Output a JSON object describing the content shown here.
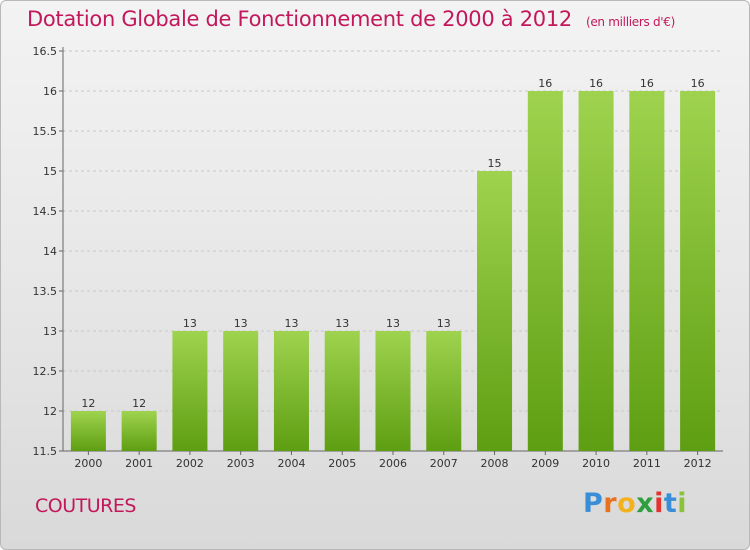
{
  "title": "Dotation Globale de Fonctionnement de 2000 à 2012",
  "unit_note": "(en milliers d'€)",
  "commune": "COUTURES",
  "brand": {
    "letters": [
      "P",
      "r",
      "o",
      "x",
      "i",
      "t",
      "i"
    ],
    "colors": [
      "#3a8ed8",
      "#e8731c",
      "#f2b21f",
      "#2e9e3e",
      "#e2332f",
      "#3a8ed8",
      "#8ac23a"
    ]
  },
  "colors": {
    "title": "#c2185b",
    "bar_top": "#9fd34f",
    "bar_bottom": "#5e9e12",
    "grid": "#c8c8c8"
  },
  "chart_data": {
    "type": "bar",
    "categories": [
      "2000",
      "2001",
      "2002",
      "2003",
      "2004",
      "2005",
      "2006",
      "2007",
      "2008",
      "2009",
      "2010",
      "2011",
      "2012"
    ],
    "values": [
      12,
      12,
      13,
      13,
      13,
      13,
      13,
      13,
      15,
      16,
      16,
      16,
      16
    ],
    "value_labels": [
      "12",
      "12",
      "13",
      "13",
      "13",
      "13",
      "13",
      "13",
      "15",
      "16",
      "16",
      "16",
      "16"
    ],
    "y_ticks": [
      "11.5",
      "12",
      "12.5",
      "13",
      "13.5",
      "14",
      "14.5",
      "15",
      "15.5",
      "16",
      "16.5"
    ],
    "ylim": [
      11.5,
      16.5
    ],
    "grid": "horizontal dashed",
    "legend": "none"
  }
}
